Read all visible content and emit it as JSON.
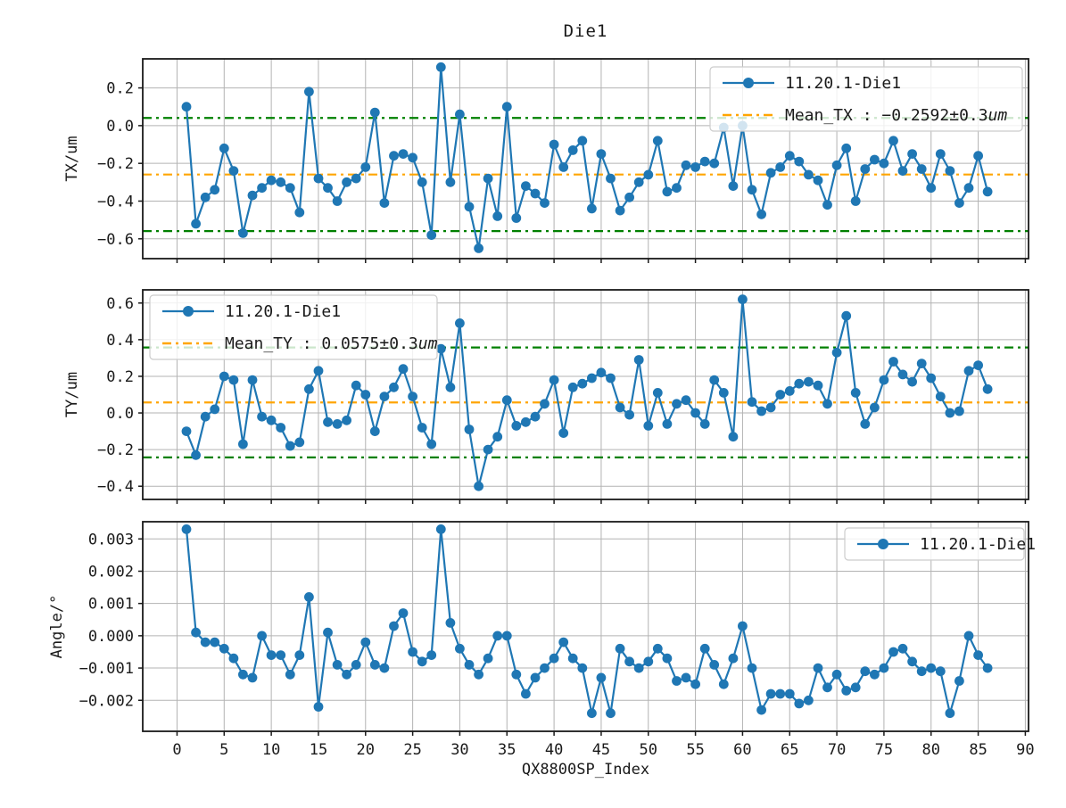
{
  "figure": {
    "title": "Die1",
    "background": "#ffffff"
  },
  "axes_shared": {
    "xlabel": "QX8800SP_Index",
    "xlim": [
      -3.64,
      90.34
    ],
    "xticks": [
      0,
      5,
      10,
      15,
      20,
      25,
      30,
      35,
      40,
      45,
      50,
      55,
      60,
      65,
      70,
      75,
      80,
      85,
      90
    ],
    "grid": true,
    "grid_color": "#b3b3b3",
    "series_color": "#1f77b4",
    "mean_line_color": "#ffa500",
    "limit_line_color": "#008000"
  },
  "chart_data": [
    {
      "type": "line",
      "ylabel": "TX/um",
      "ylim": [
        -0.705,
        0.354
      ],
      "yticks": [
        {
          "v": 0.2,
          "label": "0.2"
        },
        {
          "v": 0.0,
          "label": "0.0"
        },
        {
          "v": -0.2,
          "label": "−0.2"
        },
        {
          "v": -0.4,
          "label": "−0.4"
        },
        {
          "v": -0.6,
          "label": "−0.6"
        }
      ],
      "ref_lines": [
        {
          "name": "mean-tx",
          "value": -0.2592,
          "color": "#ffa500"
        },
        {
          "name": "upper-limit-tx",
          "value": 0.0408,
          "color": "#008000"
        },
        {
          "name": "lower-limit-tx",
          "value": -0.5592,
          "color": "#008000"
        }
      ],
      "legend": {
        "loc": "upper-right",
        "entries": [
          {
            "kind": "series",
            "label": "11.20.1-Die1"
          },
          {
            "kind": "mean",
            "label": "Mean_TX : −0.2592±0.3",
            "unit": "um"
          }
        ]
      },
      "series": [
        {
          "name": "11.20.1-Die1",
          "color": "#1f77b4",
          "x_start": 1,
          "values": [
            0.1,
            -0.52,
            -0.38,
            -0.34,
            -0.12,
            -0.24,
            -0.57,
            -0.37,
            -0.33,
            -0.29,
            -0.3,
            -0.33,
            -0.46,
            0.18,
            -0.28,
            -0.33,
            -0.4,
            -0.3,
            -0.28,
            -0.22,
            0.07,
            -0.41,
            -0.16,
            -0.15,
            -0.17,
            -0.3,
            -0.58,
            0.31,
            -0.3,
            0.06,
            -0.43,
            -0.65,
            -0.28,
            -0.48,
            0.1,
            -0.49,
            -0.32,
            -0.36,
            -0.41,
            -0.1,
            -0.22,
            -0.13,
            -0.08,
            -0.44,
            -0.15,
            -0.28,
            -0.45,
            -0.38,
            -0.3,
            -0.26,
            -0.08,
            -0.35,
            -0.33,
            -0.21,
            -0.22,
            -0.19,
            -0.2,
            -0.01,
            -0.32,
            0.0,
            -0.34,
            -0.47,
            -0.25,
            -0.22,
            -0.16,
            -0.19,
            -0.26,
            -0.29,
            -0.42,
            -0.21,
            -0.12,
            -0.4,
            -0.23,
            -0.18,
            -0.2,
            -0.08,
            -0.24,
            -0.15,
            -0.23,
            -0.33,
            -0.15,
            -0.24,
            -0.41,
            -0.33,
            -0.16,
            -0.35
          ]
        }
      ]
    },
    {
      "type": "line",
      "ylabel": "TY/um",
      "ylim": [
        -0.472,
        0.672
      ],
      "yticks": [
        {
          "v": 0.6,
          "label": "0.6"
        },
        {
          "v": 0.4,
          "label": "0.4"
        },
        {
          "v": 0.2,
          "label": "0.2"
        },
        {
          "v": 0.0,
          "label": "0.0"
        },
        {
          "v": -0.2,
          "label": "−0.2"
        },
        {
          "v": -0.4,
          "label": "−0.4"
        }
      ],
      "ref_lines": [
        {
          "name": "mean-ty",
          "value": 0.0575,
          "color": "#ffa500"
        },
        {
          "name": "upper-limit-ty",
          "value": 0.3575,
          "color": "#008000"
        },
        {
          "name": "lower-limit-ty",
          "value": -0.2425,
          "color": "#008000"
        }
      ],
      "legend": {
        "loc": "upper-left",
        "entries": [
          {
            "kind": "series",
            "label": "11.20.1-Die1"
          },
          {
            "kind": "mean",
            "label": "Mean_TY : 0.0575±0.3",
            "unit": "um"
          }
        ]
      },
      "series": [
        {
          "name": "11.20.1-Die1",
          "color": "#1f77b4",
          "x_start": 1,
          "values": [
            -0.1,
            -0.23,
            -0.02,
            0.02,
            0.2,
            0.18,
            -0.17,
            0.18,
            -0.02,
            -0.04,
            -0.08,
            -0.18,
            -0.16,
            0.13,
            0.23,
            -0.05,
            -0.06,
            -0.04,
            0.15,
            0.1,
            -0.1,
            0.09,
            0.14,
            0.24,
            0.09,
            -0.08,
            -0.17,
            0.35,
            0.14,
            0.49,
            -0.09,
            -0.4,
            -0.2,
            -0.13,
            0.07,
            -0.07,
            -0.05,
            -0.02,
            0.05,
            0.18,
            -0.11,
            0.14,
            0.16,
            0.19,
            0.22,
            0.19,
            0.03,
            -0.01,
            0.29,
            -0.07,
            0.11,
            -0.06,
            0.05,
            0.07,
            0.0,
            -0.06,
            0.18,
            0.11,
            -0.13,
            0.62,
            0.06,
            0.01,
            0.03,
            0.1,
            0.12,
            0.16,
            0.17,
            0.15,
            0.05,
            0.33,
            0.53,
            0.11,
            -0.06,
            0.03,
            0.18,
            0.28,
            0.21,
            0.17,
            0.27,
            0.19,
            0.09,
            0.0,
            0.01,
            0.23,
            0.26,
            0.13
          ]
        }
      ]
    },
    {
      "type": "line",
      "ylabel": "Angle/°",
      "ylim": [
        -0.00296,
        0.003533
      ],
      "yticks": [
        {
          "v": 0.003,
          "label": "0.003"
        },
        {
          "v": 0.002,
          "label": "0.002"
        },
        {
          "v": 0.001,
          "label": "0.001"
        },
        {
          "v": 0.0,
          "label": "0.000"
        },
        {
          "v": -0.001,
          "label": "−0.001"
        },
        {
          "v": -0.002,
          "label": "−0.002"
        }
      ],
      "ref_lines": [],
      "legend": {
        "loc": "upper-right",
        "entries": [
          {
            "kind": "series",
            "label": "11.20.1-Die1"
          }
        ]
      },
      "series": [
        {
          "name": "11.20.1-Die1",
          "color": "#1f77b4",
          "x_start": 1,
          "values": [
            0.0033,
            0.0001,
            -0.0002,
            -0.0002,
            -0.0004,
            -0.0007,
            -0.0012,
            -0.0013,
            0.0,
            -0.0006,
            -0.0006,
            -0.0012,
            -0.0006,
            0.0012,
            -0.0022,
            0.0001,
            -0.0009,
            -0.0012,
            -0.0009,
            -0.0002,
            -0.0009,
            -0.001,
            0.0003,
            0.0007,
            -0.0005,
            -0.0008,
            -0.0006,
            0.0033,
            0.0004,
            -0.0004,
            -0.0009,
            -0.0012,
            -0.0007,
            0.0,
            0.0,
            -0.0012,
            -0.0018,
            -0.0013,
            -0.001,
            -0.0007,
            -0.0002,
            -0.0007,
            -0.001,
            -0.0024,
            -0.0013,
            -0.0024,
            -0.0004,
            -0.0008,
            -0.001,
            -0.0008,
            -0.0004,
            -0.0007,
            -0.0014,
            -0.0013,
            -0.0015,
            -0.0004,
            -0.0009,
            -0.0015,
            -0.0007,
            0.0003,
            -0.001,
            -0.0023,
            -0.0018,
            -0.0018,
            -0.0018,
            -0.0021,
            -0.002,
            -0.001,
            -0.0016,
            -0.0012,
            -0.0017,
            -0.0016,
            -0.0011,
            -0.0012,
            -0.001,
            -0.0005,
            -0.0004,
            -0.0008,
            -0.0011,
            -0.001,
            -0.0011,
            -0.0024,
            -0.0014,
            0.0,
            -0.0006,
            -0.001
          ]
        }
      ]
    }
  ]
}
